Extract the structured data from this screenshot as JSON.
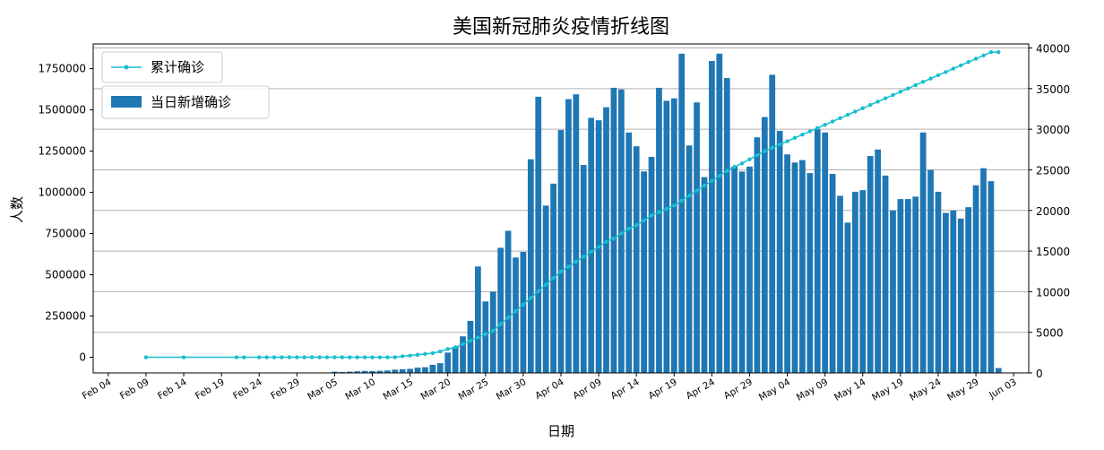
{
  "chart_data": {
    "type": "bar",
    "title": "美国新冠肺炎疫情折线图",
    "xlabel": "日期",
    "ylabel": "人数",
    "x_tick_labels": [
      "Feb 04",
      "Feb 09",
      "Feb 14",
      "Feb 19",
      "Feb 24",
      "Feb 29",
      "Mar 05",
      "Mar 10",
      "Mar 15",
      "Mar 20",
      "Mar 25",
      "Mar 30",
      "Apr 04",
      "Apr 09",
      "Apr 14",
      "Apr 19",
      "Apr 24",
      "Apr 29",
      "May 04",
      "May 09",
      "May 14",
      "May 19",
      "May 24",
      "May 29",
      "Jun 03"
    ],
    "x_tick_days": [
      0,
      5,
      10,
      15,
      20,
      25,
      30,
      35,
      40,
      45,
      50,
      55,
      60,
      65,
      70,
      75,
      80,
      85,
      90,
      95,
      100,
      105,
      110,
      115,
      120
    ],
    "x_range_days": [
      -2,
      122
    ],
    "left_axis": {
      "ylim": [
        -95000,
        1900000
      ],
      "ticks": [
        0,
        250000,
        500000,
        750000,
        1000000,
        1250000,
        1500000,
        1750000
      ],
      "tick_labels": [
        "0",
        "250000",
        "500000",
        "750000",
        "1000000",
        "1250000",
        "1500000",
        "1750000"
      ]
    },
    "right_axis": {
      "ylim": [
        0,
        40500
      ],
      "ticks": [
        0,
        5000,
        10000,
        15000,
        20000,
        25000,
        30000,
        35000,
        40000
      ],
      "tick_labels": [
        "0",
        "5000",
        "10000",
        "15000",
        "20000",
        "25000",
        "30000",
        "35000",
        "40000"
      ]
    },
    "grid": "right-axis horizontal",
    "legend": {
      "line_label": "累计确诊",
      "bar_label": "当日新增确诊",
      "placement": "top-left"
    },
    "colors": {
      "line": "#17becf",
      "bar": "#1f77b4"
    },
    "series": [
      {
        "name": "累计确诊",
        "axis": "left",
        "type": "line",
        "x_days": [
          5,
          10,
          17,
          18,
          20,
          21,
          22,
          23,
          24,
          25,
          26,
          27,
          28,
          29,
          30,
          31,
          32,
          33,
          34,
          35,
          36,
          37,
          38,
          39,
          40,
          41,
          42,
          43,
          44,
          45,
          46,
          47,
          48,
          49,
          50,
          51,
          52,
          53,
          54,
          55,
          56,
          57,
          58,
          59,
          60,
          61,
          62,
          63,
          64,
          65,
          66,
          67,
          68,
          69,
          70,
          71,
          72,
          73,
          74,
          75,
          76,
          77,
          78,
          79,
          80,
          81,
          82,
          83,
          84,
          85,
          86,
          87,
          88,
          89,
          90,
          91,
          92,
          93,
          94,
          95,
          96,
          97,
          98,
          99,
          100,
          101,
          102,
          103,
          104,
          105,
          106,
          107,
          108,
          109,
          110,
          111,
          112,
          113,
          114,
          115,
          116,
          117,
          118
        ],
        "values": [
          0,
          0,
          0,
          0,
          0,
          0,
          0,
          0,
          0,
          0,
          0,
          0,
          0,
          0,
          0,
          0,
          0,
          0,
          0,
          0,
          0,
          0,
          0,
          6000,
          10000,
          15000,
          20000,
          25000,
          35000,
          50000,
          60000,
          80000,
          100000,
          120000,
          140000,
          160000,
          200000,
          240000,
          280000,
          320000,
          360000,
          400000,
          440000,
          480000,
          520000,
          550000,
          580000,
          610000,
          640000,
          670000,
          700000,
          720000,
          750000,
          780000,
          800000,
          830000,
          860000,
          880000,
          900000,
          920000,
          950000,
          980000,
          1010000,
          1040000,
          1070000,
          1100000,
          1130000,
          1155000,
          1175000,
          1200000,
          1225000,
          1250000,
          1270000,
          1290000,
          1310000,
          1330000,
          1350000,
          1370000,
          1390000,
          1410000,
          1430000,
          1450000,
          1470000,
          1490000,
          1510000,
          1530000,
          1550000,
          1570000,
          1590000,
          1610000,
          1630000,
          1650000,
          1670000,
          1690000,
          1710000,
          1730000,
          1750000,
          1770000,
          1790000,
          1810000,
          1830000,
          1850000,
          1850000
        ]
      },
      {
        "name": "当日新增确诊",
        "axis": "right",
        "type": "bar",
        "x_days": [
          27,
          28,
          29,
          30,
          31,
          32,
          33,
          34,
          35,
          36,
          37,
          38,
          39,
          40,
          41,
          42,
          43,
          44,
          45,
          46,
          47,
          48,
          49,
          50,
          51,
          52,
          53,
          54,
          55,
          56,
          57,
          58,
          59,
          60,
          61,
          62,
          63,
          64,
          65,
          66,
          67,
          68,
          69,
          70,
          71,
          72,
          73,
          74,
          75,
          76,
          77,
          78,
          79,
          80,
          81,
          82,
          83,
          84,
          85,
          86,
          87,
          88,
          89,
          90,
          91,
          92,
          93,
          94,
          95,
          96,
          97,
          98,
          99,
          100,
          101,
          102,
          103,
          104,
          105,
          106,
          107,
          108,
          109,
          110,
          111,
          112,
          113,
          114,
          115,
          116,
          117,
          118
        ],
        "values": [
          0,
          0,
          0,
          150,
          120,
          160,
          200,
          250,
          230,
          260,
          300,
          400,
          450,
          500,
          650,
          700,
          1000,
          1200,
          2500,
          3200,
          4500,
          6400,
          13100,
          8800,
          10000,
          15400,
          17500,
          14200,
          14900,
          26300,
          34000,
          20600,
          23300,
          29900,
          33700,
          34300,
          25600,
          31400,
          31100,
          32700,
          35100,
          34900,
          29600,
          27900,
          24800,
          26600,
          35100,
          33500,
          33800,
          39300,
          28000,
          33300,
          24100,
          38400,
          39300,
          36300,
          25400,
          24800,
          25400,
          29000,
          31500,
          36700,
          29800,
          26900,
          25900,
          26200,
          24600,
          30000,
          29600,
          24500,
          21800,
          18500,
          22300,
          22500,
          26700,
          27500,
          24300,
          20000,
          21400,
          21400,
          21700,
          29600,
          25000,
          22300,
          19700,
          20000,
          19000,
          20400,
          23100,
          25200,
          23600,
          600
        ]
      }
    ]
  }
}
